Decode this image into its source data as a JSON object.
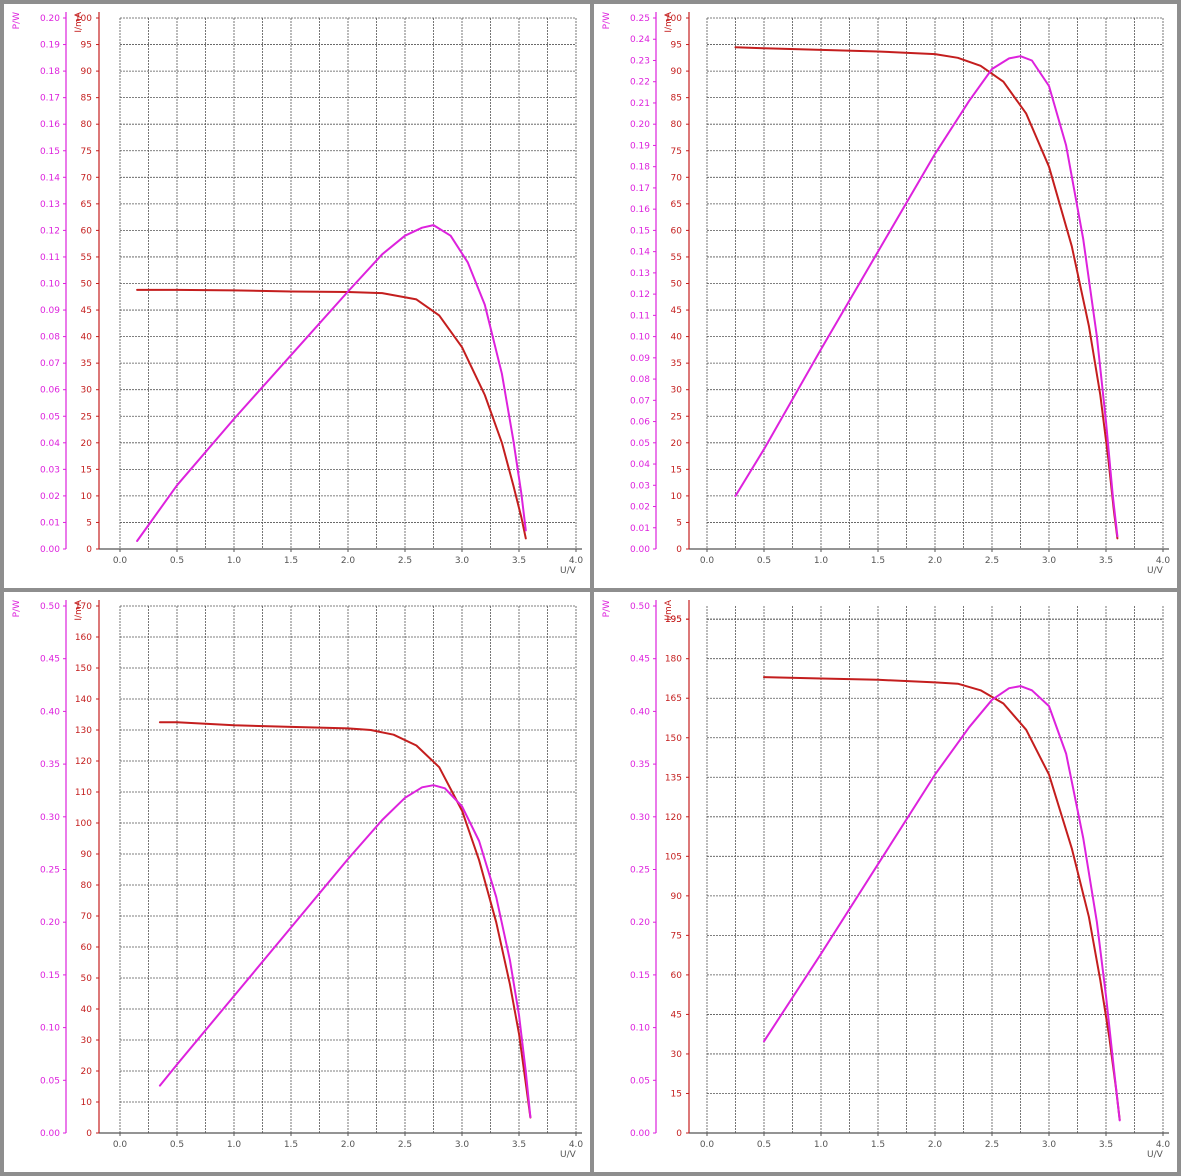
{
  "colors": {
    "power": "#dd22dd",
    "current": "#c41e1e",
    "grid": "#555555",
    "axis_x": "#555555",
    "background": "#ffffff",
    "separator": "#8e8e8e"
  },
  "labels": {
    "power_axis": "P/W",
    "current_axis": "I/mA",
    "voltage_axis": "U/V"
  },
  "chart_data": [
    {
      "type": "line",
      "xlabel": "U/V",
      "ylabel": "I/mA",
      "y2label": "P/W",
      "xlim": [
        0,
        4
      ],
      "xticks": [
        0,
        0.5,
        1,
        1.5,
        2,
        2.5,
        3,
        3.5,
        4
      ],
      "ylim": [
        0,
        100
      ],
      "ystep": 5,
      "y2lim": [
        0,
        0.2
      ],
      "y2step": 0.01,
      "grid": true,
      "series": [
        {
          "name": "I/mA",
          "axis": "current",
          "color": "#c41e1e",
          "x": [
            0.15,
            0.5,
            1.0,
            1.5,
            2.0,
            2.3,
            2.6,
            2.8,
            3.0,
            3.2,
            3.35,
            3.45,
            3.52,
            3.56
          ],
          "y": [
            48.8,
            48.8,
            48.7,
            48.5,
            48.4,
            48.2,
            47.0,
            44.0,
            38.0,
            29.0,
            20.0,
            12.0,
            6.0,
            2.0
          ]
        },
        {
          "name": "P/W",
          "axis": "power",
          "color": "#dd22dd",
          "x": [
            0.15,
            0.5,
            1.0,
            1.5,
            2.0,
            2.3,
            2.5,
            2.65,
            2.75,
            2.9,
            3.05,
            3.2,
            3.35,
            3.45,
            3.52,
            3.56
          ],
          "y": [
            0.003,
            0.024,
            0.049,
            0.073,
            0.097,
            0.111,
            0.118,
            0.121,
            0.122,
            0.118,
            0.108,
            0.092,
            0.066,
            0.041,
            0.021,
            0.007
          ]
        }
      ]
    },
    {
      "type": "line",
      "xlabel": "U/V",
      "ylabel": "I/mA",
      "y2label": "P/W",
      "xlim": [
        0,
        4
      ],
      "xticks": [
        0,
        0.5,
        1,
        1.5,
        2,
        2.5,
        3,
        3.5,
        4
      ],
      "ylim": [
        0,
        100
      ],
      "ystep": 5,
      "y2lim": [
        0,
        0.25
      ],
      "y2step": 0.01,
      "grid": true,
      "series": [
        {
          "name": "I/mA",
          "axis": "current",
          "color": "#c41e1e",
          "x": [
            0.25,
            0.5,
            1.0,
            1.5,
            2.0,
            2.2,
            2.4,
            2.6,
            2.8,
            3.0,
            3.2,
            3.35,
            3.45,
            3.52,
            3.57,
            3.6
          ],
          "y": [
            94.5,
            94.3,
            94.0,
            93.7,
            93.2,
            92.5,
            91.0,
            88.0,
            82.0,
            72.0,
            57.0,
            42.0,
            29.0,
            17.0,
            7.0,
            2.0
          ]
        },
        {
          "name": "P/W",
          "axis": "power",
          "color": "#dd22dd",
          "x": [
            0.25,
            0.5,
            1.0,
            1.5,
            2.0,
            2.3,
            2.5,
            2.65,
            2.75,
            2.85,
            3.0,
            3.15,
            3.3,
            3.42,
            3.5,
            3.56,
            3.6
          ],
          "y": [
            0.025,
            0.047,
            0.094,
            0.14,
            0.186,
            0.211,
            0.226,
            0.231,
            0.232,
            0.23,
            0.218,
            0.19,
            0.146,
            0.1,
            0.06,
            0.025,
            0.006
          ]
        }
      ]
    },
    {
      "type": "line",
      "xlabel": "U/V",
      "ylabel": "I/mA",
      "y2label": "P/W",
      "xlim": [
        0,
        4
      ],
      "xticks": [
        0,
        0.5,
        1,
        1.5,
        2,
        2.5,
        3,
        3.5,
        4
      ],
      "ylim": [
        0,
        170
      ],
      "ystep": 10,
      "y2lim": [
        0,
        0.5
      ],
      "y2step": 0.05,
      "grid": true,
      "series": [
        {
          "name": "I/mA",
          "axis": "current",
          "color": "#c41e1e",
          "x": [
            0.35,
            0.5,
            1.0,
            1.5,
            2.0,
            2.2,
            2.4,
            2.6,
            2.8,
            3.0,
            3.15,
            3.3,
            3.42,
            3.5,
            3.56,
            3.6
          ],
          "y": [
            132.5,
            132.5,
            131.5,
            131.0,
            130.5,
            130.0,
            128.5,
            125.0,
            118.0,
            104.0,
            88.0,
            68.0,
            48.0,
            32.0,
            16.0,
            5.0
          ]
        },
        {
          "name": "P/W",
          "axis": "power",
          "color": "#dd22dd",
          "x": [
            0.35,
            0.5,
            1.0,
            1.5,
            2.0,
            2.3,
            2.5,
            2.65,
            2.75,
            2.85,
            3.0,
            3.15,
            3.3,
            3.42,
            3.5,
            3.56,
            3.6
          ],
          "y": [
            0.045,
            0.065,
            0.13,
            0.195,
            0.26,
            0.297,
            0.318,
            0.328,
            0.33,
            0.327,
            0.31,
            0.277,
            0.224,
            0.164,
            0.112,
            0.058,
            0.015
          ]
        }
      ]
    },
    {
      "type": "line",
      "xlabel": "U/V",
      "ylabel": "I/mA",
      "y2label": "P/W",
      "xlim": [
        0,
        4
      ],
      "xticks": [
        0,
        0.5,
        1,
        1.5,
        2,
        2.5,
        3,
        3.5,
        4
      ],
      "ylim": [
        0,
        200
      ],
      "ystep": 15,
      "ytop_label": 195,
      "y2lim": [
        0,
        0.5
      ],
      "y2step": 0.05,
      "grid": true,
      "series": [
        {
          "name": "I/mA",
          "axis": "current",
          "color": "#c41e1e",
          "x": [
            0.5,
            1.0,
            1.5,
            2.0,
            2.2,
            2.4,
            2.6,
            2.8,
            3.0,
            3.2,
            3.35,
            3.45,
            3.53,
            3.59,
            3.62
          ],
          "y": [
            173.0,
            172.5,
            172.0,
            171.0,
            170.5,
            168.0,
            163.0,
            153.0,
            136.0,
            108.0,
            82.0,
            58.0,
            36.0,
            16.0,
            5.0
          ]
        },
        {
          "name": "P/W",
          "axis": "power",
          "color": "#dd22dd",
          "x": [
            0.5,
            1.0,
            1.5,
            2.0,
            2.3,
            2.5,
            2.65,
            2.75,
            2.85,
            3.0,
            3.15,
            3.3,
            3.42,
            3.5,
            3.57,
            3.62
          ],
          "y": [
            0.087,
            0.17,
            0.255,
            0.34,
            0.385,
            0.411,
            0.422,
            0.424,
            0.42,
            0.405,
            0.36,
            0.28,
            0.2,
            0.13,
            0.06,
            0.012
          ]
        }
      ]
    }
  ]
}
